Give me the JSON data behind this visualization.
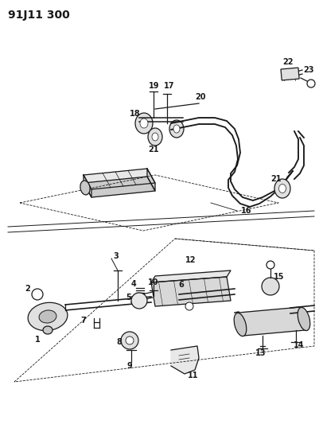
{
  "title": "91J11 300",
  "bg_color": "#ffffff",
  "line_color": "#1a1a1a",
  "title_fontsize": 10,
  "label_fontsize": 7,
  "fig_width": 4.02,
  "fig_height": 5.33,
  "dpi": 100
}
